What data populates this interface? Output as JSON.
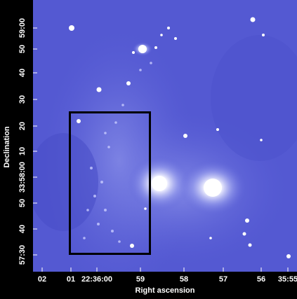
{
  "axes": {
    "x_label": "Right ascension",
    "y_label": "Declination",
    "x_ticks": [
      "02",
      "01",
      "22:36:00",
      "59",
      "58",
      "57",
      "56",
      "35:55"
    ],
    "y_ticks": [
      "59:00",
      "50",
      "40",
      "30",
      "20",
      "10",
      "33:58:00",
      "50",
      "40",
      "57:30"
    ]
  }
}
